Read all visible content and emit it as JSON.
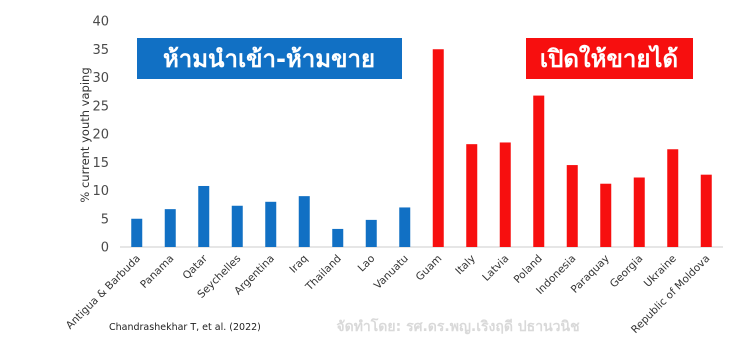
{
  "chart_data": {
    "type": "bar",
    "categories": [
      "Antigua & Barbuda",
      "Panama",
      "Qatar",
      "Seychelles",
      "Argentina",
      "Iraq",
      "Thailand",
      "Lao",
      "Vanuatu",
      "Guam",
      "Italy",
      "Latvia",
      "Poland",
      "Indonesia",
      "Paraquay",
      "Georgia",
      "Ukraine",
      "Republic of Moldova"
    ],
    "values": [
      5.0,
      6.7,
      10.8,
      7.3,
      8.0,
      9.0,
      3.2,
      4.8,
      7.0,
      35.0,
      18.2,
      18.5,
      26.8,
      14.5,
      11.2,
      12.3,
      17.3,
      12.8
    ],
    "bar_colors": [
      "#1170c4",
      "#1170c4",
      "#1170c4",
      "#1170c4",
      "#1170c4",
      "#1170c4",
      "#1170c4",
      "#1170c4",
      "#1170c4",
      "#f70f0f",
      "#f70f0f",
      "#f70f0f",
      "#f70f0f",
      "#f70f0f",
      "#f70f0f",
      "#f70f0f",
      "#f70f0f",
      "#f70f0f"
    ],
    "ylabel": "% current youth vaping",
    "ylim": [
      0,
      40
    ],
    "yticks": [
      0,
      5,
      10,
      15,
      20,
      25,
      30,
      35,
      40
    ],
    "grid": false
  },
  "banners": {
    "ban": {
      "text": "ห้ามนำเข้า-ห้ามขาย",
      "color": "#1170c4"
    },
    "allow": {
      "text": "เปิดให้ขายได้",
      "color": "#f70f0f"
    }
  },
  "source": "Chandrashekhar T, et al. (2022)",
  "credit": "จัดทำโดย: รศ.ดร.พญ.เริงฤดี ปธานวนิช"
}
